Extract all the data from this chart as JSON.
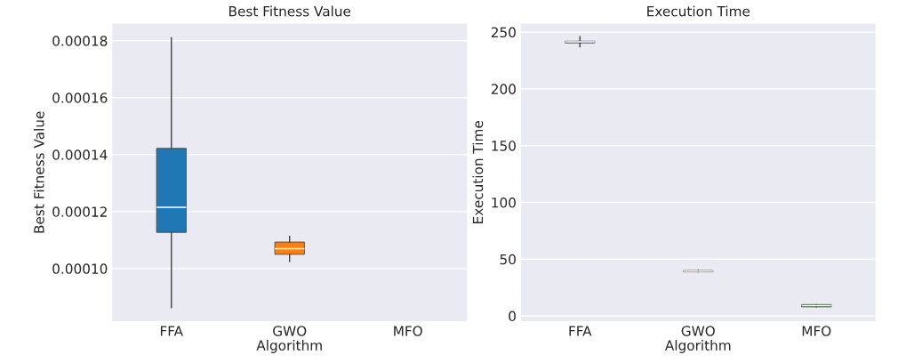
{
  "chart_data": [
    {
      "type": "box",
      "title": "Best Fitness Value",
      "xlabel": "Algorithm",
      "ylabel": "Best Fitness Value",
      "categories": [
        "FFA",
        "GWO",
        "MFO"
      ],
      "colors": [
        "#1f77b4",
        "#ff7f0e",
        "#2ca02c"
      ],
      "boxes": [
        {
          "low": 8.63e-05,
          "q1": 0.0001127,
          "median": 0.0001215,
          "q3": 0.0001422,
          "high": 0.000181
        },
        {
          "low": 0.0001025,
          "q1": 0.000105,
          "median": 0.000107,
          "q3": 0.0001093,
          "high": 0.0001113
        },
        null
      ],
      "ylim": [
        8.15e-05,
        0.000186
      ],
      "yticks": [
        {
          "value": 0.0001,
          "label": "0.00010"
        },
        {
          "value": 0.00012,
          "label": "0.00012"
        },
        {
          "value": 0.00014,
          "label": "0.00014"
        },
        {
          "value": 0.00016,
          "label": "0.00016"
        },
        {
          "value": 0.00018,
          "label": "0.00018"
        }
      ],
      "grid": "y"
    },
    {
      "type": "box",
      "title": "Execution Time",
      "xlabel": "Algorithm",
      "ylabel": "Execution Time",
      "categories": [
        "FFA",
        "GWO",
        "MFO"
      ],
      "colors": [
        "#1f77b4",
        "#ff7f0e",
        "#2ca02c"
      ],
      "boxes": [
        {
          "low": 237,
          "q1": 240.5,
          "median": 241.4,
          "q3": 242,
          "high": 246
        },
        {
          "low": 38.8,
          "q1": 38.8,
          "median": 39.4,
          "q3": 40,
          "high": 40
        },
        {
          "low": 8,
          "q1": 8,
          "median": 9.1,
          "q3": 10,
          "high": 10
        }
      ],
      "ylim": [
        -4.7,
        257.5
      ],
      "yticks": [
        0,
        50,
        100,
        150,
        200,
        250
      ],
      "grid": "y"
    }
  ]
}
